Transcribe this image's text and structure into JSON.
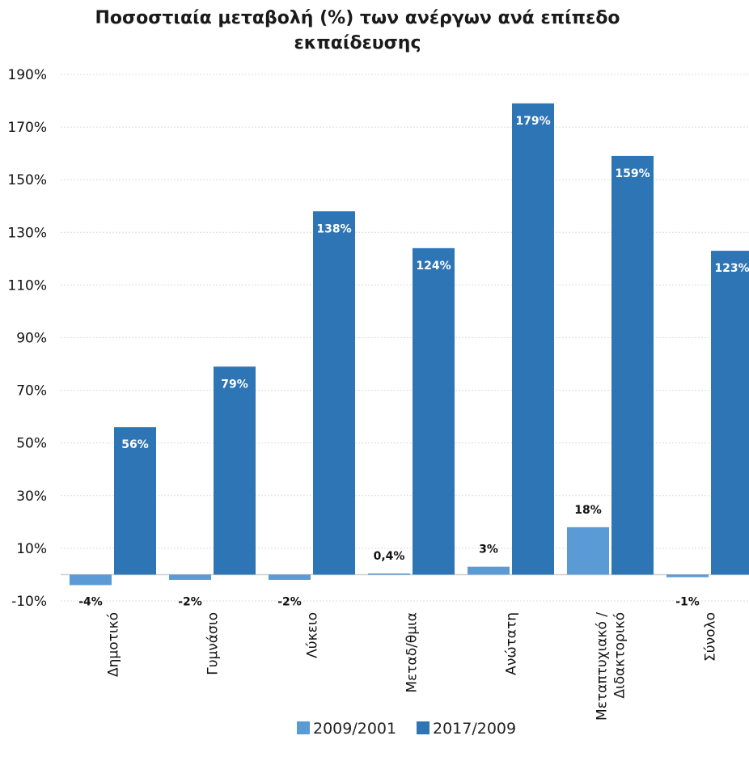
{
  "chart_data": {
    "type": "bar",
    "title_lines": [
      "Ποσοστιαία μεταβολή (%) των ανέργων ανά επίπεδο",
      "εκπαίδευσης"
    ],
    "categories": [
      [
        "Δημοτικό"
      ],
      [
        "Γυμνάσιο"
      ],
      [
        "Λύκειο"
      ],
      [
        "Μεταδ/θμια"
      ],
      [
        "Ανώτατη"
      ],
      [
        "Μεταπτυχιακό /",
        "Διδακτορικό"
      ],
      [
        "Σύνολο"
      ]
    ],
    "series": [
      {
        "name": "2009/2001",
        "color": "#5b9bd5",
        "values": [
          -4,
          -2,
          -2,
          0.4,
          3,
          18,
          -1
        ],
        "labels": [
          "-4%",
          "-2%",
          "-2%",
          "0,4%",
          "3%",
          "18%",
          "-1%"
        ],
        "label_color": "#111111"
      },
      {
        "name": "2017/2009",
        "color": "#2e75b6",
        "values": [
          56,
          79,
          138,
          124,
          179,
          159,
          123
        ],
        "labels": [
          "56%",
          "79%",
          "138%",
          "124%",
          "179%",
          "159%",
          "123%"
        ],
        "label_color": "#ffffff"
      }
    ],
    "yticks": [
      "-10%",
      "10%",
      "30%",
      "50%",
      "70%",
      "90%",
      "110%",
      "130%",
      "150%",
      "170%",
      "190%"
    ],
    "ylim": [
      -10,
      190
    ],
    "grid": true,
    "legend_position": "bottom-center"
  }
}
